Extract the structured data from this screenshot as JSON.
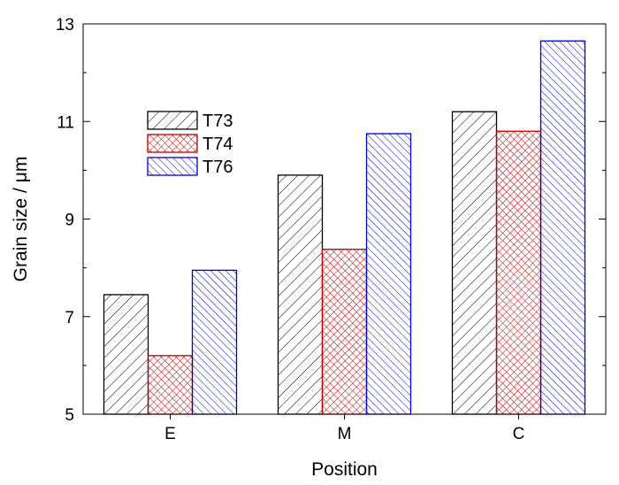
{
  "chart_data": {
    "type": "bar",
    "title": "",
    "xlabel": "Position",
    "ylabel": "Grain size / μm",
    "categories": [
      "E",
      "M",
      "C"
    ],
    "ylim": [
      5,
      13
    ],
    "yticks": [
      "5",
      "7",
      "9",
      "11",
      "13"
    ],
    "grid": false,
    "legend_position": "upper-left",
    "series": [
      {
        "name": "T73",
        "values": [
          7.45,
          9.9,
          11.2
        ],
        "color": "#000000",
        "pattern": "forward-diagonal"
      },
      {
        "name": "T74",
        "values": [
          6.2,
          8.38,
          10.8
        ],
        "color": "#c00000",
        "pattern": "cross-hatch"
      },
      {
        "name": "T76",
        "values": [
          7.95,
          10.75,
          12.65
        ],
        "color": "#0000cc",
        "pattern": "backward-diagonal"
      }
    ]
  }
}
